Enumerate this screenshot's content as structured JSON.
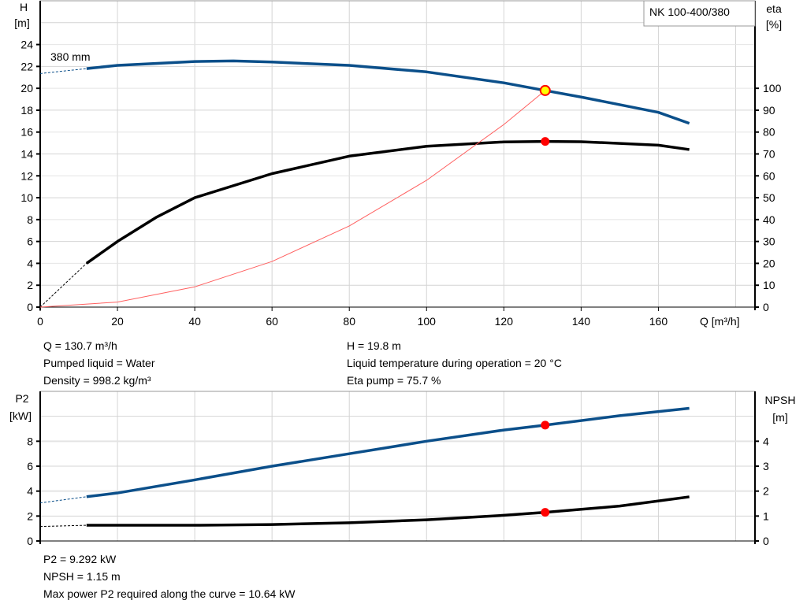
{
  "chart_data": [
    {
      "type": "line",
      "title": "NK 100-400/380",
      "xlabel": "Q [m³/h]",
      "xlim": [
        0,
        185
      ],
      "xticks": [
        0,
        20,
        40,
        60,
        80,
        100,
        120,
        140,
        160
      ],
      "ylabel_left": "H\n[m]",
      "ylim_left": [
        0,
        28
      ],
      "yticks_left": [
        0,
        2,
        4,
        6,
        8,
        10,
        12,
        14,
        16,
        18,
        20,
        22,
        24
      ],
      "ylabel_right": "eta\n[%]",
      "ylim_right": [
        0,
        140
      ],
      "yticks_right": [
        0,
        10,
        20,
        30,
        40,
        50,
        60,
        70,
        80,
        90,
        100
      ],
      "grid": true,
      "curve_label": "380 mm",
      "series": [
        {
          "axis": "left",
          "color": "#0b4f8a",
          "x": [
            12,
            20,
            40,
            50,
            60,
            80,
            100,
            120,
            130.7,
            140,
            160,
            168
          ],
          "y": [
            21.8,
            22.1,
            22.45,
            22.5,
            22.4,
            22.1,
            21.5,
            20.5,
            19.8,
            19.2,
            17.8,
            16.8
          ],
          "extrapolated": {
            "x": [
              0,
              12
            ],
            "y": [
              21.35,
              21.8
            ]
          }
        },
        {
          "axis": "right",
          "color": "#000000",
          "x": [
            12,
            20,
            30,
            40,
            60,
            80,
            100,
            120,
            130.7,
            140,
            160,
            168
          ],
          "y": [
            20,
            30,
            41,
            50,
            61,
            69,
            73.5,
            75.5,
            75.7,
            75.6,
            74,
            72
          ],
          "extrapolated": {
            "x": [
              0,
              12
            ],
            "y": [
              0,
              20
            ]
          }
        },
        {
          "axis": "left",
          "color": "#ff6060",
          "type": "system-curve",
          "x": [
            0,
            20,
            40,
            60,
            80,
            100,
            120,
            130.7
          ],
          "y": [
            0,
            0.46,
            1.85,
            4.17,
            7.42,
            11.59,
            16.69,
            19.8
          ]
        }
      ],
      "operating_point": {
        "Q": 130.7,
        "H": 19.8,
        "eta": 75.7
      }
    },
    {
      "type": "line",
      "xlabel": "",
      "xlim": [
        0,
        185
      ],
      "ylabel_left": "P2\n[kW]",
      "ylim_left": [
        0,
        12
      ],
      "yticks_left": [
        0,
        2,
        4,
        6,
        8
      ],
      "ylabel_right": "NPSH\n[m]",
      "ylim_right": [
        0,
        6
      ],
      "yticks_right": [
        0,
        1,
        2,
        3,
        4
      ],
      "grid": true,
      "series": [
        {
          "axis": "left",
          "color": "#0b4f8a",
          "x": [
            12,
            20,
            40,
            60,
            80,
            100,
            120,
            130.7,
            150,
            168
          ],
          "y": [
            3.55,
            3.85,
            4.9,
            6.0,
            7.0,
            8.0,
            8.9,
            9.292,
            10.05,
            10.64
          ],
          "extrapolated": {
            "x": [
              0,
              12
            ],
            "y": [
              3.05,
              3.55
            ]
          }
        },
        {
          "axis": "right",
          "color": "#000000",
          "x": [
            12,
            40,
            60,
            80,
            100,
            120,
            130.7,
            150,
            168
          ],
          "y": [
            0.63,
            0.63,
            0.66,
            0.73,
            0.85,
            1.03,
            1.15,
            1.4,
            1.77
          ],
          "extrapolated": {
            "x": [
              0,
              12
            ],
            "y": [
              0.58,
              0.63
            ]
          }
        }
      ],
      "operating_point": {
        "Q": 130.7,
        "P2": 9.292,
        "NPSH": 1.15
      }
    }
  ],
  "info_top": [
    "Q = 130.7 m³/h",
    "Pumped liquid = Water",
    "Density = 998.2 kg/m³",
    "H = 19.8 m",
    "Liquid temperature during operation = 20 °C",
    "Eta pump = 75.7 %"
  ],
  "info_bottom": [
    "P2 = 9.292 kW",
    "NPSH = 1.15 m",
    "Max power P2 required along the curve = 10.64 kW"
  ]
}
